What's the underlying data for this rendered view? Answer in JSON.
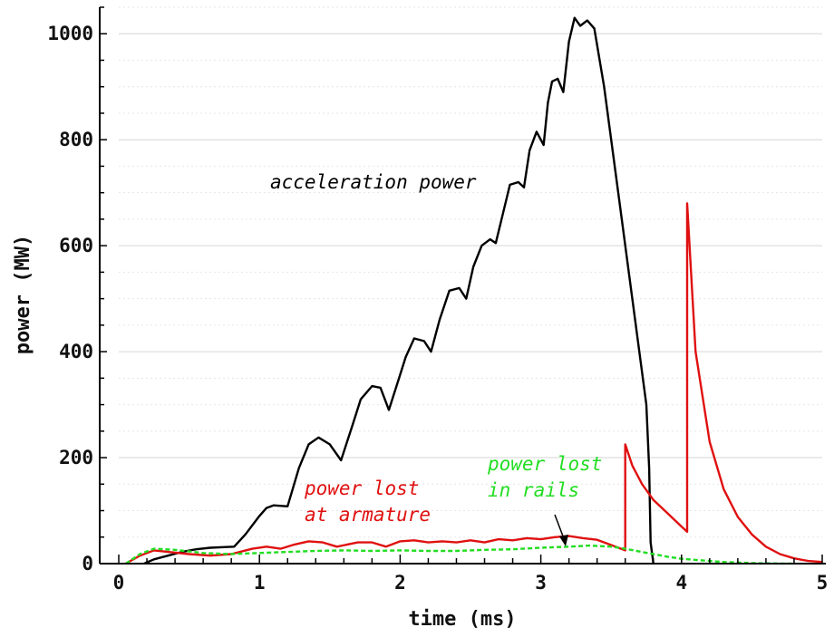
{
  "chart_data": {
    "type": "line",
    "xlabel": "time (ms)",
    "ylabel": "power (MW)",
    "xlim": [
      0,
      5
    ],
    "ylim": [
      0,
      1050
    ],
    "x_ticks": [
      "0",
      "1",
      "2",
      "3",
      "4",
      "5"
    ],
    "y_ticks": [
      "0",
      "200",
      "400",
      "600",
      "800",
      "1000"
    ],
    "grid": "horizontal",
    "colors": {
      "acceleration": "#000000",
      "armature": "#e01010",
      "rails": "#22dd22"
    },
    "annotations": [
      {
        "text": "acceleration power",
        "color": "#000000"
      },
      {
        "text": "power lost",
        "color": "#e01010"
      },
      {
        "text": "at armature",
        "color": "#e01010"
      },
      {
        "text": "power lost",
        "color": "#22dd22"
      },
      {
        "text": "in rails",
        "color": "#22dd22"
      }
    ],
    "series": [
      {
        "key": "acceleration",
        "x": [
          0.18,
          0.25,
          0.35,
          0.45,
          0.55,
          0.65,
          0.82,
          0.9,
          1.0,
          1.05,
          1.1,
          1.2,
          1.28,
          1.35,
          1.42,
          1.5,
          1.58,
          1.66,
          1.72,
          1.8,
          1.86,
          1.92,
          1.98,
          2.04,
          2.1,
          2.17,
          2.22,
          2.28,
          2.35,
          2.42,
          2.47,
          2.52,
          2.58,
          2.64,
          2.68,
          2.73,
          2.78,
          2.84,
          2.88,
          2.92,
          2.97,
          3.02,
          3.05,
          3.08,
          3.12,
          3.16,
          3.2,
          3.24,
          3.28,
          3.33,
          3.38,
          3.45,
          3.55,
          3.65,
          3.75,
          3.77,
          3.78,
          3.8
        ],
        "y": [
          0,
          8,
          15,
          22,
          27,
          30,
          32,
          55,
          90,
          105,
          110,
          108,
          180,
          225,
          238,
          225,
          195,
          260,
          310,
          335,
          332,
          290,
          340,
          390,
          425,
          420,
          400,
          460,
          515,
          520,
          500,
          560,
          600,
          612,
          605,
          660,
          715,
          720,
          710,
          780,
          815,
          790,
          870,
          910,
          915,
          890,
          985,
          1030,
          1015,
          1025,
          1010,
          900,
          700,
          500,
          300,
          180,
          40,
          0
        ]
      },
      {
        "key": "armature",
        "x": [
          0.05,
          0.15,
          0.25,
          0.35,
          0.5,
          0.65,
          0.8,
          0.95,
          1.05,
          1.15,
          1.25,
          1.35,
          1.45,
          1.55,
          1.7,
          1.8,
          1.9,
          2.0,
          2.1,
          2.2,
          2.3,
          2.4,
          2.5,
          2.6,
          2.7,
          2.8,
          2.9,
          3.0,
          3.1,
          3.2,
          3.3,
          3.4,
          3.5,
          3.6,
          3.6,
          3.65,
          3.72,
          3.8,
          3.9,
          4.0,
          4.04,
          4.04,
          4.1,
          4.2,
          4.3,
          4.4,
          4.5,
          4.6,
          4.7,
          4.8,
          4.9,
          5.0
        ],
        "y": [
          0,
          15,
          25,
          22,
          18,
          15,
          18,
          28,
          32,
          28,
          36,
          42,
          40,
          32,
          40,
          40,
          32,
          42,
          44,
          40,
          42,
          40,
          44,
          40,
          46,
          44,
          48,
          46,
          50,
          52,
          48,
          45,
          35,
          25,
          225,
          185,
          150,
          120,
          95,
          70,
          60,
          680,
          400,
          230,
          140,
          88,
          55,
          32,
          18,
          10,
          5,
          3
        ]
      },
      {
        "key": "rails",
        "x": [
          0.05,
          0.15,
          0.25,
          0.4,
          0.6,
          0.8,
          1.0,
          1.2,
          1.4,
          1.6,
          1.8,
          2.0,
          2.2,
          2.4,
          2.6,
          2.8,
          3.0,
          3.2,
          3.35,
          3.5,
          3.6,
          3.7,
          3.8,
          3.9,
          4.0,
          4.1,
          4.2,
          4.3,
          4.4,
          4.5,
          4.6,
          4.7,
          4.8
        ],
        "y": [
          0,
          18,
          28,
          26,
          20,
          18,
          20,
          22,
          24,
          25,
          24,
          25,
          24,
          24,
          26,
          27,
          30,
          32,
          34,
          32,
          28,
          23,
          18,
          13,
          9,
          7,
          5,
          3,
          2,
          1,
          0.5,
          0.2,
          0
        ]
      }
    ]
  }
}
